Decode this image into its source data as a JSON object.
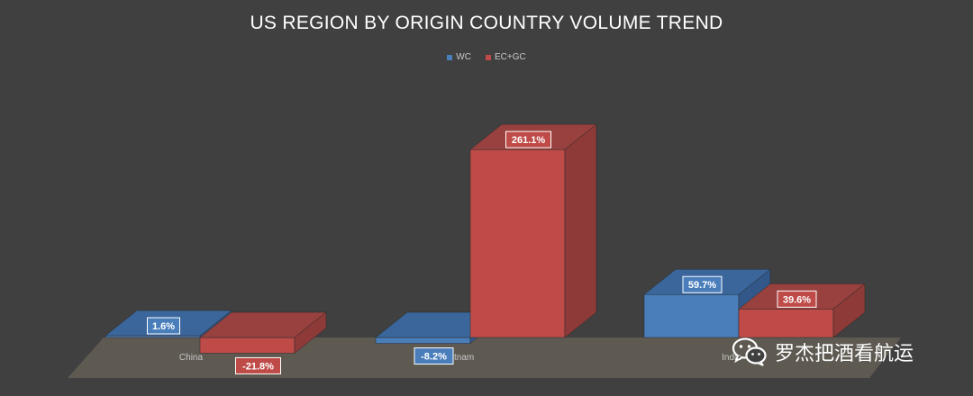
{
  "colors": {
    "background": "#404040",
    "floor": "#5e5a52",
    "wc_front": "#4a7ebb",
    "wc_top": "#3a669c",
    "wc_side": "#32588a",
    "ecgc_front": "#be4b48",
    "ecgc_top": "#98413f",
    "ecgc_side": "#8d3a38"
  },
  "chart_data": {
    "type": "bar",
    "title": "US REGION BY ORIGIN COUNTRY VOLUME TREND",
    "categories": [
      "China",
      "Vietnam",
      "India"
    ],
    "series": [
      {
        "name": "WC",
        "values": [
          1.6,
          -8.2,
          59.7
        ],
        "labels": [
          "1.6%",
          "-8.2%",
          "59.7%"
        ]
      },
      {
        "name": "EC+GC",
        "values": [
          -21.8,
          261.1,
          39.6
        ],
        "labels": [
          "-21.8%",
          "261.1%",
          "39.6%"
        ]
      }
    ],
    "legend_position": "top",
    "grid": false,
    "data_labels": true
  },
  "watermark": {
    "icon": "wechat-icon",
    "text": "罗杰把酒看航运"
  }
}
